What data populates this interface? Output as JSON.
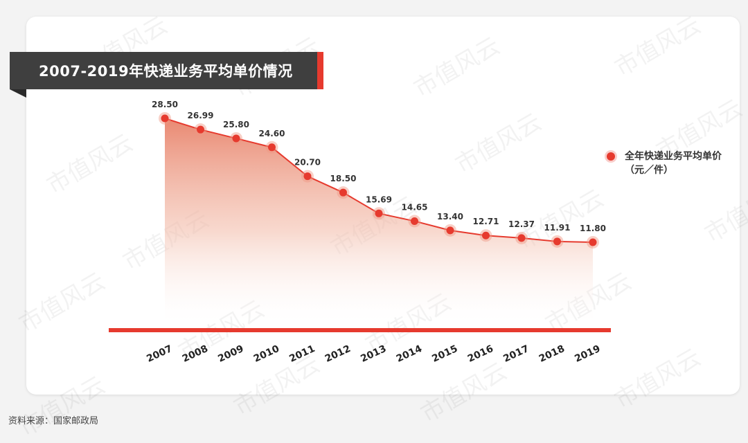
{
  "watermark_text": "市值风云",
  "source_text": "资料来源：国家邮政局",
  "legend": {
    "label": "全年快递业务平均单价（元／件）"
  },
  "colors": {
    "accent": "#e63a2e",
    "banner": "#3f3f3f",
    "fill_top": "#e8826a"
  },
  "chart_data": {
    "type": "area",
    "title": "2007-2019年快递业务平均单价情况",
    "xlabel": "",
    "ylabel": "",
    "categories": [
      "2007",
      "2008",
      "2009",
      "2010",
      "2011",
      "2012",
      "2013",
      "2014",
      "2015",
      "2016",
      "2017",
      "2018",
      "2019"
    ],
    "series": [
      {
        "name": "全年快递业务平均单价（元／件）",
        "values": [
          28.5,
          26.99,
          25.8,
          24.6,
          20.7,
          18.5,
          15.69,
          14.65,
          13.4,
          12.71,
          12.37,
          11.91,
          11.8
        ],
        "labels": [
          "28.50",
          "26.99",
          "25.80",
          "24.60",
          "20.70",
          "18.50",
          "15.69",
          "14.65",
          "13.40",
          "12.71",
          "12.37",
          "11.91",
          "11.80"
        ]
      }
    ],
    "ylim": [
      0,
      28.5
    ],
    "grid": false,
    "legend_position": "right"
  }
}
